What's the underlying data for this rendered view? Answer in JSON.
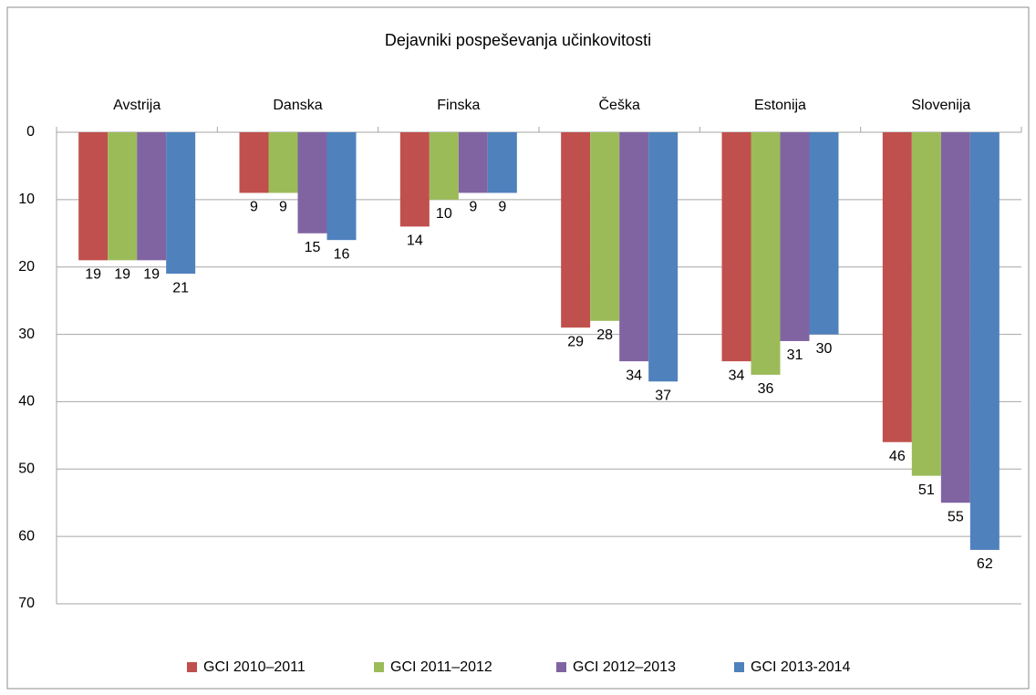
{
  "chart_data": {
    "type": "bar",
    "title": "Dejavniki pospeševanja učinkovitosti",
    "categories": [
      "Avstrija",
      "Danska",
      "Finska",
      "Češka",
      "Estonija",
      "Slovenija"
    ],
    "series": [
      {
        "name": "GCI 2010–2011",
        "color": "#c0504d",
        "values": [
          19,
          9,
          14,
          29,
          34,
          46
        ]
      },
      {
        "name": "GCI 2011–2012",
        "color": "#9bbb59",
        "values": [
          19,
          9,
          10,
          28,
          36,
          51
        ]
      },
      {
        "name": "GCI 2012–2013",
        "color": "#8064a2",
        "values": [
          19,
          15,
          9,
          34,
          31,
          55
        ]
      },
      {
        "name": "GCI 2013-2014",
        "color": "#4f81bd",
        "values": [
          21,
          16,
          9,
          37,
          30,
          62
        ]
      }
    ],
    "ylim": [
      0,
      70
    ],
    "yticks": [
      0,
      10,
      20,
      30,
      40,
      50,
      60,
      70
    ],
    "y_reversed": true,
    "grid": true,
    "legend": "bottom"
  }
}
